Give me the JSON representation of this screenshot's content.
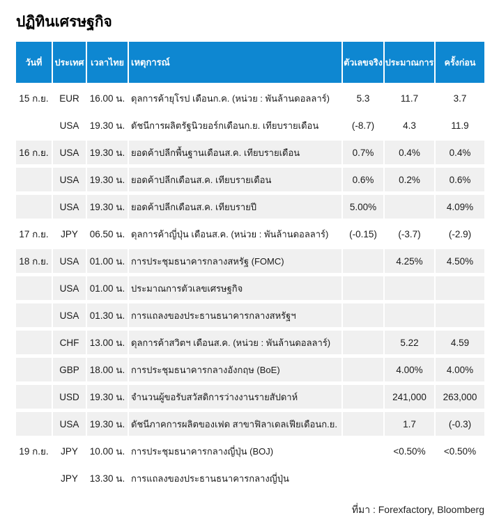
{
  "title": "ปฏิทินเศรษฐกิจ",
  "source_note": "ที่มา : Forexfactory, Bloomberg",
  "colors": {
    "header_bg": "#0e87d1",
    "header_text": "#ffffff",
    "shaded_row_bg": "#f0f0f0",
    "body_text": "#1a1a1a"
  },
  "table": {
    "columns": [
      {
        "key": "date",
        "label": "วันที่"
      },
      {
        "key": "country",
        "label": "ประเทศ"
      },
      {
        "key": "time",
        "label": "เวลาไทย"
      },
      {
        "key": "event",
        "label": "เหตุการณ์"
      },
      {
        "key": "actual",
        "label": "ตัวเลขจริง"
      },
      {
        "key": "forecast",
        "label": "ประมาณการ"
      },
      {
        "key": "previous",
        "label": "ครั้งก่อน"
      }
    ],
    "rows": [
      {
        "date": "15 ก.ย.",
        "country": "EUR",
        "time": "16.00 น.",
        "event": "ดุลการค้ายุโรป เดือนก.ค. (หน่วย : พันล้านดอลลาร์)",
        "actual": "5.3",
        "forecast": "11.7",
        "previous": "3.7",
        "shaded": false
      },
      {
        "date": "",
        "country": "USA",
        "time": "19.30 น.",
        "event": "ดัชนีการผลิตรัฐนิวยอร์กเดือนก.ย. เทียบรายเดือน",
        "actual": "(-8.7)",
        "forecast": "4.3",
        "previous": "11.9",
        "shaded": false
      },
      {
        "date": "16 ก.ย.",
        "country": "USA",
        "time": "19.30 น.",
        "event": "ยอดค้าปลีกพื้นฐานเดือนส.ค. เทียบรายเดือน",
        "actual": "0.7%",
        "forecast": "0.4%",
        "previous": "0.4%",
        "shaded": true
      },
      {
        "date": "",
        "country": "USA",
        "time": "19.30 น.",
        "event": "ยอดค้าปลีกเดือนส.ค. เทียบรายเดือน",
        "actual": "0.6%",
        "forecast": "0.2%",
        "previous": "0.6%",
        "shaded": true
      },
      {
        "date": "",
        "country": "USA",
        "time": "19.30 น.",
        "event": "ยอดค้าปลีกเดือนส.ค. เทียบรายปี",
        "actual": "5.00%",
        "forecast": "",
        "previous": "4.09%",
        "shaded": true
      },
      {
        "date": "17 ก.ย.",
        "country": "JPY",
        "time": "06.50 น.",
        "event": "ดุลการค้าญี่ปุ่น เดือนส.ค. (หน่วย : พันล้านดอลลาร์)",
        "actual": "(-0.15)",
        "forecast": "(-3.7)",
        "previous": "(-2.9)",
        "shaded": false
      },
      {
        "date": "18 ก.ย.",
        "country": "USA",
        "time": "01.00 น.",
        "event": "การประชุมธนาคารกลางสหรัฐ (FOMC)",
        "actual": "",
        "forecast": "4.25%",
        "previous": "4.50%",
        "shaded": true
      },
      {
        "date": "",
        "country": "USA",
        "time": "01.00 น.",
        "event": "ประมาณการตัวเลขเศรษฐกิจ",
        "actual": "",
        "forecast": "",
        "previous": "",
        "shaded": true
      },
      {
        "date": "",
        "country": "USA",
        "time": "01.30 น.",
        "event": "การแถลงของประธานธนาคารกลางสหรัฐฯ",
        "actual": "",
        "forecast": "",
        "previous": "",
        "shaded": true
      },
      {
        "date": "",
        "country": "CHF",
        "time": "13.00 น.",
        "event": "ดุลการค้าสวิตฯ เดือนส.ค. (หน่วย : พันล้านดอลลาร์)",
        "actual": "",
        "forecast": "5.22",
        "previous": "4.59",
        "shaded": true
      },
      {
        "date": "",
        "country": "GBP",
        "time": "18.00 น.",
        "event": "การประชุมธนาคารกลางอังกฤษ (BoE)",
        "actual": "",
        "forecast": "4.00%",
        "previous": "4.00%",
        "shaded": true
      },
      {
        "date": "",
        "country": "USD",
        "time": "19.30 น.",
        "event": "จำนวนผู้ขอรับสวัสดิการว่างงานรายสัปดาห์",
        "actual": "",
        "forecast": "241,000",
        "previous": "263,000",
        "shaded": true
      },
      {
        "date": "",
        "country": "USA",
        "time": "19.30 น.",
        "event": "ดัชนีภาคการผลิตของเฟด สาขาฟิลาเดลเฟียเดือนก.ย.",
        "actual": "",
        "forecast": "1.7",
        "previous": "(-0.3)",
        "shaded": true
      },
      {
        "date": "19 ก.ย.",
        "country": "JPY",
        "time": "10.00 น.",
        "event": "การประชุมธนาคารกลางญี่ปุ่น (BOJ)",
        "actual": "",
        "forecast": "<0.50%",
        "previous": "<0.50%",
        "shaded": false
      },
      {
        "date": "",
        "country": "JPY",
        "time": "13.30 น.",
        "event": "การแถลงของประธานธนาคารกลางญี่ปุ่น",
        "actual": "",
        "forecast": "",
        "previous": "",
        "shaded": false
      }
    ]
  }
}
